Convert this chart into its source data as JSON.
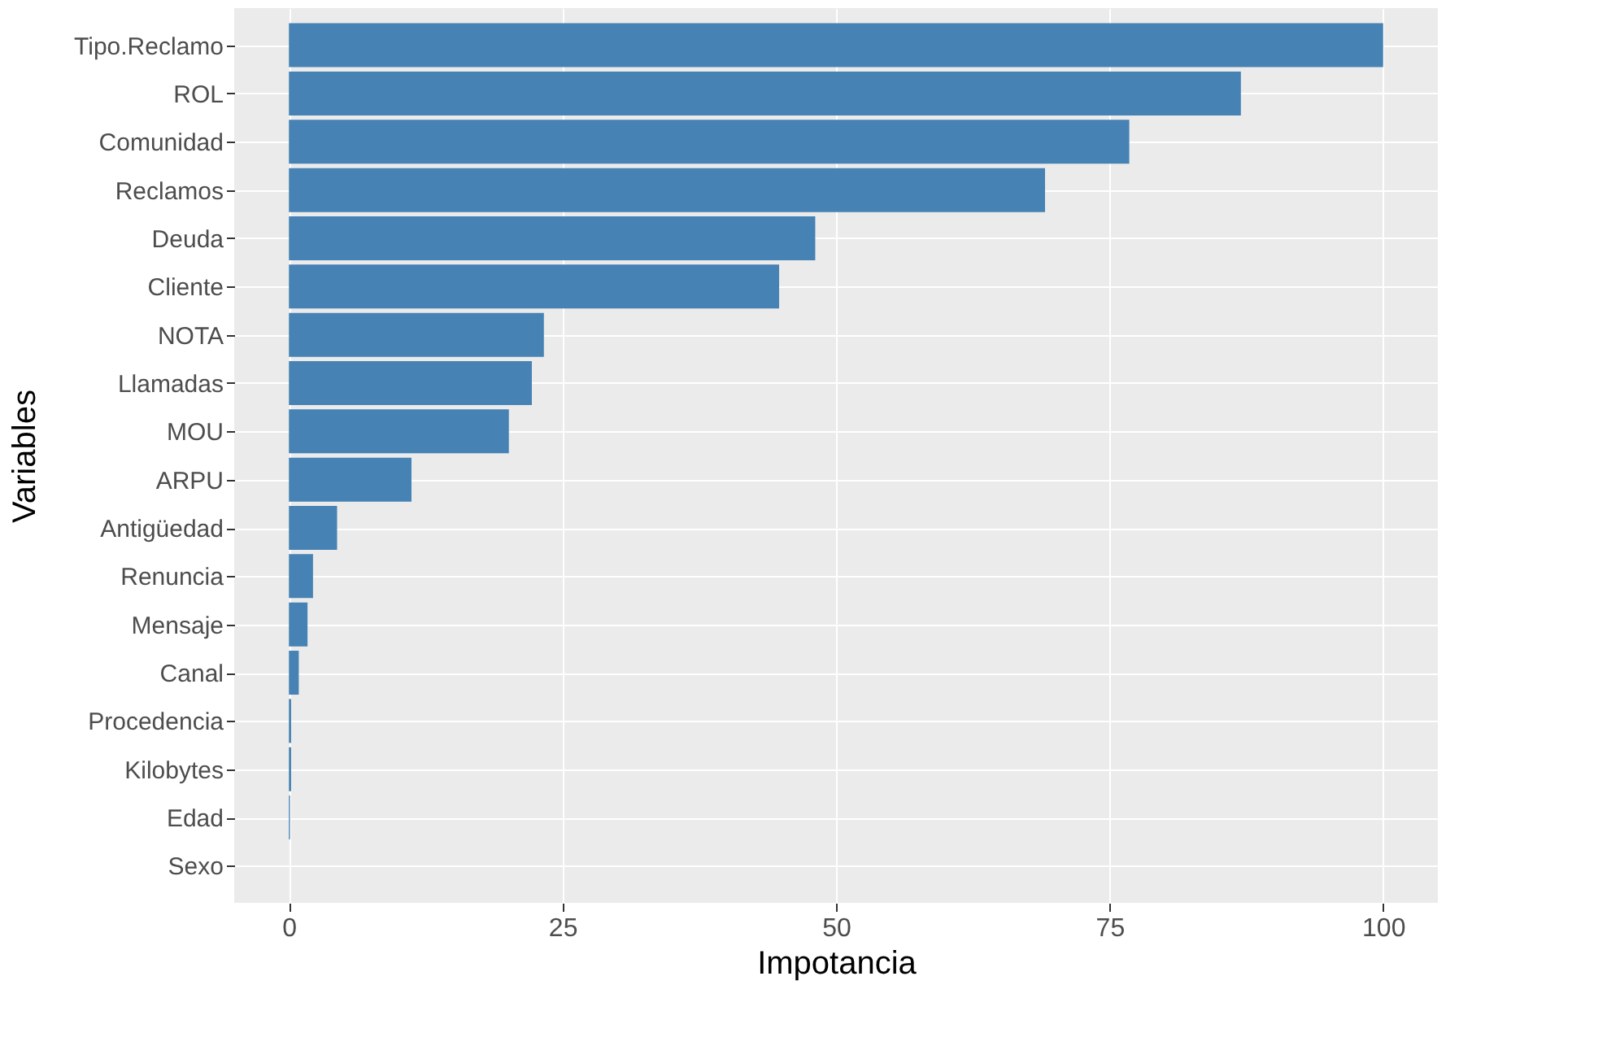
{
  "chart_data": {
    "type": "bar",
    "orientation": "horizontal",
    "xlabel": "Impotancia",
    "ylabel": "Variables",
    "categories": [
      "Tipo.Reclamo",
      "ROL",
      "Comunidad",
      "Reclamos",
      "Deuda",
      "Cliente",
      "NOTA",
      "Llamadas",
      "MOU",
      "ARPU",
      "Antigüedad",
      "Renuncia",
      "Mensaje",
      "Canal",
      "Procedencia",
      "Kilobytes",
      "Edad",
      "Sexo"
    ],
    "values": [
      100,
      87,
      76.8,
      69.1,
      48.1,
      44.8,
      23.3,
      22.2,
      20.1,
      11.2,
      4.4,
      2.2,
      1.7,
      0.9,
      0.2,
      0.2,
      0.1,
      0
    ],
    "color": "#4682b4",
    "xlim": [
      -5,
      105
    ],
    "xticks": [
      0,
      25,
      50,
      75,
      100
    ],
    "grid": true
  }
}
